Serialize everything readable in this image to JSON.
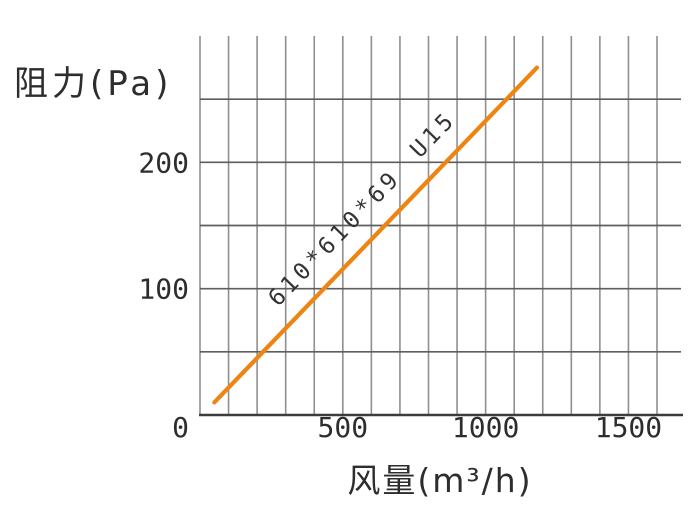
{
  "page": {
    "background": "#ffffff"
  },
  "chart_data": {
    "type": "line",
    "title": "",
    "xlabel": "风量(m³/h)",
    "ylabel": "阻力(Pa)",
    "xlim": [
      0,
      1600
    ],
    "ylim": [
      0,
      300
    ],
    "xticks": [
      0,
      500,
      1000,
      1500
    ],
    "yticks": [
      0,
      100,
      200
    ],
    "x_grid_step": 100,
    "y_grid_step": 50,
    "grid": true,
    "legend_position": "none",
    "colors": {
      "axis": "#3c3c3c",
      "grid_vertical": "#8f8f8f",
      "grid_horizontal": "#5e5e5e",
      "text": "#2d2d2d",
      "series": "#ee8412"
    },
    "series": [
      {
        "name": "610*610*69 U15",
        "color": "#ee8412",
        "points": [
          [
            50,
            10
          ],
          [
            1180,
            275
          ]
        ]
      }
    ],
    "annotations": [
      {
        "text": "610*610*69",
        "x": 490,
        "y": 136,
        "rotation": -46
      },
      {
        "text": "U15",
        "x": 835,
        "y": 218,
        "rotation": -46
      }
    ]
  }
}
